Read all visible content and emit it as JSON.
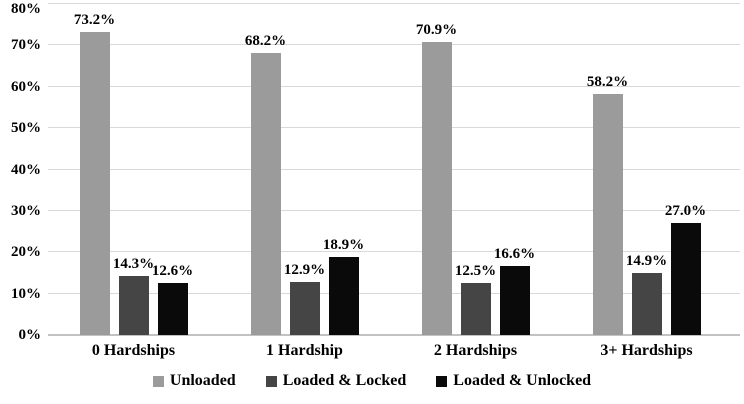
{
  "chart_data": {
    "type": "bar",
    "title": "",
    "xlabel": "",
    "ylabel": "",
    "categories": [
      "0 Hardships",
      "1 Hardship",
      "2 Hardships",
      "3+ Hardships"
    ],
    "series": [
      {
        "name": "Unloaded",
        "color": "#9b9b9b",
        "values": [
          73.2,
          68.2,
          70.9,
          58.2
        ],
        "labels": [
          "73.2%",
          "68.2%",
          "70.9%",
          "58.2%"
        ]
      },
      {
        "name": "Loaded & Locked",
        "color": "#454545",
        "values": [
          14.3,
          12.9,
          12.5,
          14.9
        ],
        "labels": [
          "14.3%",
          "12.9%",
          "12.5%",
          "14.9%"
        ]
      },
      {
        "name": "Loaded & Unlocked",
        "color": "#0a0a0a",
        "values": [
          12.6,
          18.9,
          16.6,
          27.0
        ],
        "labels": [
          "12.6%",
          "18.9%",
          "16.6%",
          "27.0%"
        ]
      }
    ],
    "ylim": [
      0,
      80
    ],
    "yticks": [
      {
        "value": 0,
        "label": "0%"
      },
      {
        "value": 10,
        "label": "10%"
      },
      {
        "value": 20,
        "label": "20%"
      },
      {
        "value": 30,
        "label": "30%"
      },
      {
        "value": 40,
        "label": "40%"
      },
      {
        "value": 50,
        "label": "50%"
      },
      {
        "value": 60,
        "label": "60%"
      },
      {
        "value": 70,
        "label": "70%"
      },
      {
        "value": 80,
        "label": "80%"
      }
    ],
    "grid": true,
    "legend_position": "bottom",
    "colors": {
      "background": "#ffffff",
      "gridline": "#d9d9d9",
      "baseline": "#c2c2c2",
      "text": "#000000"
    }
  }
}
